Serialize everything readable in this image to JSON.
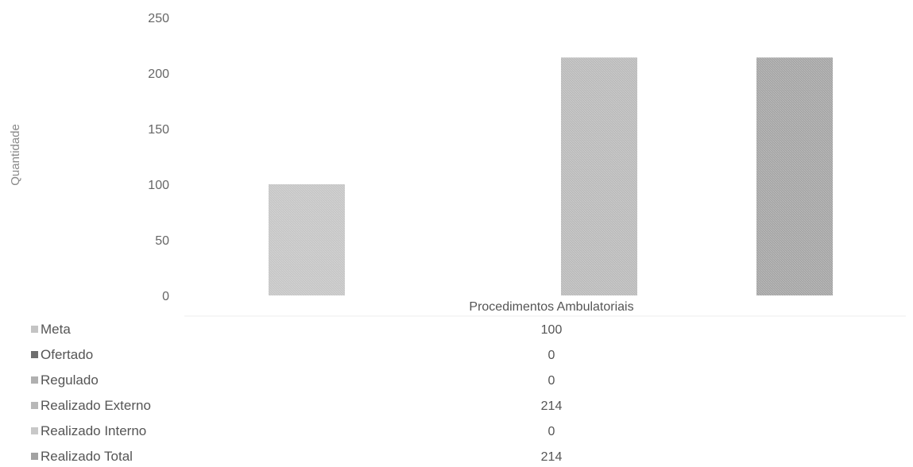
{
  "chart_data": {
    "type": "bar",
    "categories": [
      "Procedimentos Ambulatoriais"
    ],
    "ylabel": "Quantidade",
    "xlabel": "",
    "ylim": [
      0,
      250
    ],
    "yticks": [
      0,
      50,
      100,
      150,
      200,
      250
    ],
    "grid": false,
    "legend": "data-table-below",
    "series": [
      {
        "name": "Meta",
        "values": [
          100
        ],
        "display": "100",
        "color": "#c4c4c4"
      },
      {
        "name": "Ofertado",
        "values": [
          0
        ],
        "display": "0",
        "color": "#6e6e6e"
      },
      {
        "name": "Regulado",
        "values": [
          0
        ],
        "display": "0",
        "color": "#b0b0b0"
      },
      {
        "name": "Realizado Externo",
        "values": [
          214
        ],
        "display": "214",
        "color": "#b8b8b8"
      },
      {
        "name": "Realizado Interno",
        "values": [
          0
        ],
        "display": "0",
        "color": "#c8c8c8"
      },
      {
        "name": "Realizado Total",
        "values": [
          214
        ],
        "display": "214",
        "color": "#a2a2a2"
      }
    ]
  }
}
